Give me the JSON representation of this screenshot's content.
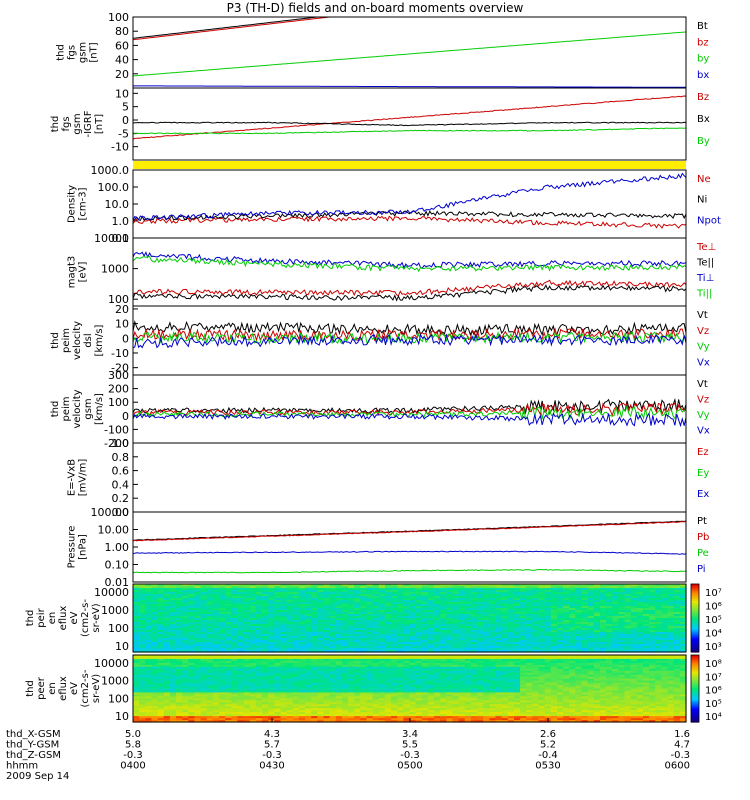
{
  "title": "P3 (TH-D) fields and on-board moments overview",
  "date_label": "2009 Sep 14",
  "x_axis_rows": [
    {
      "label": "thd_X-GSM",
      "values": [
        "5.0",
        "4.3",
        "3.4",
        "2.6",
        "1.6"
      ]
    },
    {
      "label": "thd_Y-GSM",
      "values": [
        "5.8",
        "5.7",
        "5.5",
        "5.2",
        "4.7"
      ]
    },
    {
      "label": "thd_Z-GSM",
      "values": [
        "-0.3",
        "-0.3",
        "-0.3",
        "-0.4",
        "-0.3"
      ]
    },
    {
      "label": "hhmm",
      "values": [
        "0400",
        "0430",
        "0500",
        "0530",
        "0600"
      ]
    }
  ],
  "colors": {
    "black": "#000000",
    "red": "#cc0000",
    "green": "#00cc00",
    "blue": "#0000cc",
    "yellow": "#ffee00"
  },
  "chart_data": [
    {
      "type": "line",
      "ylabel": [
        "thd",
        "fgs",
        "gsm",
        "[nT]"
      ],
      "ylim": [
        0,
        100
      ],
      "yticks": [
        "100",
        "80",
        "60",
        "40",
        "20"
      ],
      "x": [
        "0400",
        "0600"
      ],
      "series": [
        {
          "name": "Bt",
          "color": "#000000",
          "values": [
            70,
            160
          ]
        },
        {
          "name": "bz",
          "color": "#cc0000",
          "values": [
            68,
            158
          ]
        },
        {
          "name": "by",
          "color": "#00cc00",
          "values": [
            17,
            79
          ]
        },
        {
          "name": "bx",
          "color": "#0000cc",
          "values": [
            3,
            1
          ]
        }
      ]
    },
    {
      "type": "line",
      "ylabel": [
        "thd",
        "fgs",
        "gsm",
        "-IGRF",
        "[nT]"
      ],
      "ylim": [
        -15,
        12
      ],
      "yticks": [
        "10",
        "5",
        "0",
        "-5",
        "-10"
      ],
      "x": [
        "0400",
        "0430",
        "0500",
        "0530",
        "0600"
      ],
      "series": [
        {
          "name": "Bz",
          "color": "#cc0000",
          "values": [
            -7,
            -3,
            1,
            5,
            9
          ]
        },
        {
          "name": "Bx",
          "color": "#000000",
          "values": [
            -1,
            -1,
            -2,
            -1,
            -1
          ]
        },
        {
          "name": "By",
          "color": "#00cc00",
          "values": [
            -5,
            -5,
            -4,
            -4,
            -3
          ]
        }
      ]
    },
    {
      "type": "line",
      "ylabel": [
        "Density",
        "[cm-3]"
      ],
      "ylim": [
        0.1,
        1000
      ],
      "yscale": "log",
      "yticks": [
        "1000.0",
        "100.0",
        "10.0",
        "1.0",
        "0.1"
      ],
      "x": [
        "0400",
        "0430",
        "0500",
        "0530",
        "0600"
      ],
      "series": [
        {
          "name": "Ne",
          "color": "#cc0000",
          "values": [
            1.0,
            1.3,
            1.5,
            0.8,
            0.5
          ]
        },
        {
          "name": "Ni",
          "color": "#000000",
          "values": [
            1.5,
            2.0,
            3.0,
            2.5,
            2.0
          ]
        },
        {
          "name": "Npot",
          "color": "#0000cc",
          "values": [
            1.5,
            3.0,
            3.5,
            100,
            500
          ]
        }
      ]
    },
    {
      "type": "line",
      "ylabel": [
        "magt3",
        "[eV]"
      ],
      "ylim": [
        60,
        10000
      ],
      "yscale": "log",
      "yticks": [
        "10000",
        "1000",
        "100"
      ],
      "x": [
        "0400",
        "0430",
        "0500",
        "0530",
        "0600"
      ],
      "series": [
        {
          "name": "Te⊥",
          "color": "#cc0000",
          "values": [
            180,
            170,
            160,
            350,
            300
          ]
        },
        {
          "name": "Te||",
          "color": "#000000",
          "values": [
            130,
            120,
            110,
            250,
            220
          ]
        },
        {
          "name": "Ti⊥",
          "color": "#0000cc",
          "values": [
            3000,
            1800,
            1300,
            1500,
            1500
          ]
        },
        {
          "name": "Ti||",
          "color": "#00cc00",
          "values": [
            2200,
            1400,
            1000,
            1100,
            1100
          ]
        }
      ]
    },
    {
      "type": "line",
      "ylabel": [
        "thd",
        "peim",
        "velocity",
        "dsl",
        "[km/s]"
      ],
      "ylim": [
        -25,
        22
      ],
      "yticks": [
        "20",
        "10",
        "0",
        "-10",
        "-20"
      ],
      "x": [
        "0400",
        "0430",
        "0500",
        "0530",
        "0600"
      ],
      "series": [
        {
          "name": "Vt",
          "color": "#000000",
          "values": [
            8,
            7,
            6,
            6,
            7
          ]
        },
        {
          "name": "Vz",
          "color": "#cc0000",
          "values": [
            3,
            2,
            2,
            3,
            3
          ]
        },
        {
          "name": "Vy",
          "color": "#00cc00",
          "values": [
            1,
            0,
            0,
            1,
            1
          ]
        },
        {
          "name": "Vx",
          "color": "#0000cc",
          "values": [
            -3,
            -2,
            -1,
            -1,
            -1
          ]
        }
      ]
    },
    {
      "type": "line",
      "ylabel": [
        "thd",
        "peim",
        "velocity",
        "gsm",
        "[km/s]"
      ],
      "ylim": [
        -200,
        300
      ],
      "yticks": [
        "300",
        "200",
        "100",
        "0",
        "-100",
        "-200"
      ],
      "x": [
        "0400",
        "0430",
        "0500",
        "0530",
        "0600"
      ],
      "series": [
        {
          "name": "Vt",
          "color": "#000000",
          "values": [
            40,
            40,
            40,
            70,
            80
          ]
        },
        {
          "name": "Vz",
          "color": "#cc0000",
          "values": [
            25,
            25,
            25,
            45,
            50
          ]
        },
        {
          "name": "Vy",
          "color": "#00cc00",
          "values": [
            10,
            10,
            10,
            20,
            25
          ]
        },
        {
          "name": "Vx",
          "color": "#0000cc",
          "values": [
            -5,
            -5,
            -5,
            -25,
            -30
          ]
        }
      ]
    },
    {
      "type": "line",
      "ylabel": [
        "E=-VxB",
        "[mV/m]"
      ],
      "ylim": [
        0,
        1
      ],
      "yticks": [
        "1.0",
        "0.8",
        "0.6",
        "0.4",
        "0.2",
        "0.0"
      ],
      "series": [
        {
          "name": "Ez",
          "color": "#cc0000",
          "values": []
        },
        {
          "name": "Ey",
          "color": "#00cc00",
          "values": []
        },
        {
          "name": "Ex",
          "color": "#0000cc",
          "values": []
        }
      ]
    },
    {
      "type": "line",
      "ylabel": [
        "Pressure",
        "[nPa]"
      ],
      "ylim": [
        0.01,
        100
      ],
      "yscale": "log",
      "yticks": [
        "100.00",
        "10.00",
        "1.00",
        "0.10",
        "0.01"
      ],
      "x": [
        "0400",
        "0430",
        "0500",
        "0530",
        "0600"
      ],
      "series": [
        {
          "name": "Pt",
          "color": "#000000",
          "values": [
            2.5,
            4.5,
            8,
            15,
            30
          ]
        },
        {
          "name": "Pb",
          "color": "#cc0000",
          "values": [
            2.3,
            4.2,
            7.5,
            14,
            28
          ]
        },
        {
          "name": "Pe",
          "color": "#00cc00",
          "values": [
            0.035,
            0.035,
            0.045,
            0.05,
            0.04
          ]
        },
        {
          "name": "Pi",
          "color": "#0000cc",
          "values": [
            0.45,
            0.5,
            0.55,
            0.55,
            0.4
          ]
        }
      ]
    },
    {
      "type": "heatmap",
      "ylabel": [
        "thd",
        "peir",
        "en",
        "eflux",
        "eV",
        "(cm2-s-",
        "sr-eV)"
      ],
      "yscale": "log",
      "yticks": [
        "10000",
        "1000",
        "100",
        "10"
      ],
      "colorbar_ticks": [
        "10⁷",
        "10⁶",
        "10⁵",
        "10⁴",
        "10³"
      ]
    },
    {
      "type": "heatmap",
      "ylabel": [
        "thd",
        "peer",
        "en",
        "eflux",
        "eV",
        "(cm2-s-",
        "sr-eV)"
      ],
      "yscale": "log",
      "yticks": [
        "10000",
        "1000",
        "100",
        "10"
      ],
      "colorbar_ticks": [
        "10⁸",
        "10⁷",
        "10⁶",
        "10⁵",
        "10⁴"
      ]
    }
  ]
}
